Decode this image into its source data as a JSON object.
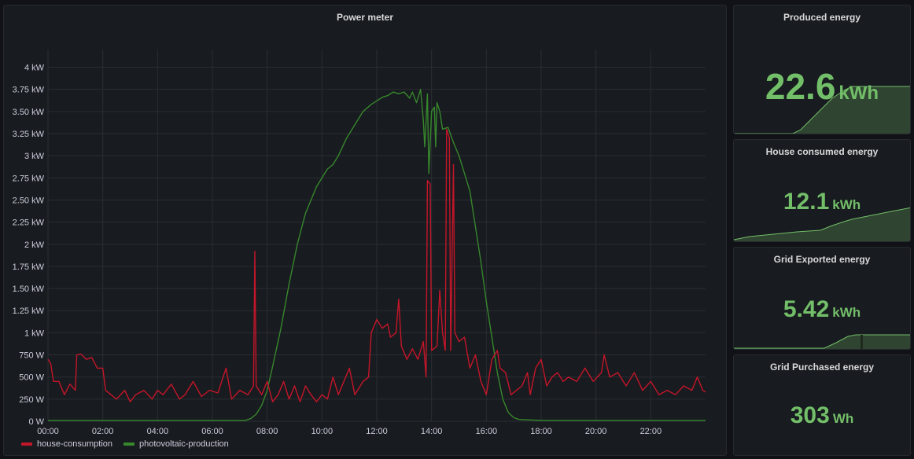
{
  "main_panel": {
    "title": "Power meter",
    "legend": [
      {
        "label": "house-consumption",
        "color": "#c4162a"
      },
      {
        "label": "photovoltaic-production",
        "color": "#37872d"
      }
    ]
  },
  "chart_data": {
    "type": "line",
    "title": "Power meter",
    "xlabel": "",
    "ylabel": "",
    "x_unit": "hour of day",
    "xlim": [
      0,
      24
    ],
    "ylim": [
      0,
      4.2
    ],
    "x_ticks": [
      "00:00",
      "02:00",
      "04:00",
      "06:00",
      "08:00",
      "10:00",
      "12:00",
      "14:00",
      "16:00",
      "18:00",
      "20:00",
      "22:00"
    ],
    "y_ticks": [
      "0 W",
      "250 W",
      "500 W",
      "750 W",
      "1 kW",
      "1.25 kW",
      "1.50 kW",
      "1.75 kW",
      "2 kW",
      "2.25 kW",
      "2.50 kW",
      "2.75 kW",
      "3 kW",
      "3.25 kW",
      "3.50 kW",
      "3.75 kW",
      "4 kW"
    ],
    "grid": true,
    "legend_position": "bottom-left",
    "series": [
      {
        "name": "house-consumption",
        "color": "#c4162a",
        "unit": "kW",
        "points": [
          [
            0,
            0.7
          ],
          [
            0.1,
            0.65
          ],
          [
            0.2,
            0.45
          ],
          [
            0.4,
            0.45
          ],
          [
            0.6,
            0.3
          ],
          [
            0.8,
            0.42
          ],
          [
            1.0,
            0.35
          ],
          [
            1.05,
            0.75
          ],
          [
            1.2,
            0.76
          ],
          [
            1.4,
            0.7
          ],
          [
            1.6,
            0.72
          ],
          [
            1.8,
            0.6
          ],
          [
            2.0,
            0.6
          ],
          [
            2.1,
            0.35
          ],
          [
            2.3,
            0.3
          ],
          [
            2.5,
            0.25
          ],
          [
            2.8,
            0.35
          ],
          [
            3.0,
            0.22
          ],
          [
            3.2,
            0.3
          ],
          [
            3.5,
            0.35
          ],
          [
            3.8,
            0.25
          ],
          [
            4.0,
            0.35
          ],
          [
            4.2,
            0.3
          ],
          [
            4.5,
            0.42
          ],
          [
            4.8,
            0.25
          ],
          [
            5.0,
            0.3
          ],
          [
            5.3,
            0.45
          ],
          [
            5.6,
            0.28
          ],
          [
            5.9,
            0.35
          ],
          [
            6.2,
            0.32
          ],
          [
            6.5,
            0.6
          ],
          [
            6.7,
            0.25
          ],
          [
            7.0,
            0.35
          ],
          [
            7.3,
            0.3
          ],
          [
            7.5,
            0.4
          ],
          [
            7.55,
            1.92
          ],
          [
            7.6,
            0.4
          ],
          [
            7.8,
            0.3
          ],
          [
            8.0,
            0.45
          ],
          [
            8.2,
            0.22
          ],
          [
            8.4,
            0.3
          ],
          [
            8.6,
            0.45
          ],
          [
            8.8,
            0.25
          ],
          [
            9.0,
            0.4
          ],
          [
            9.2,
            0.22
          ],
          [
            9.4,
            0.4
          ],
          [
            9.6,
            0.3
          ],
          [
            9.8,
            0.22
          ],
          [
            10.0,
            0.3
          ],
          [
            10.2,
            0.25
          ],
          [
            10.4,
            0.5
          ],
          [
            10.6,
            0.3
          ],
          [
            10.8,
            0.45
          ],
          [
            11.0,
            0.6
          ],
          [
            11.2,
            0.3
          ],
          [
            11.5,
            0.45
          ],
          [
            11.7,
            0.5
          ],
          [
            11.8,
            1.0
          ],
          [
            12.0,
            1.15
          ],
          [
            12.2,
            1.05
          ],
          [
            12.4,
            1.1
          ],
          [
            12.5,
            0.95
          ],
          [
            12.7,
            1.0
          ],
          [
            12.8,
            1.38
          ],
          [
            12.9,
            0.85
          ],
          [
            13.1,
            0.7
          ],
          [
            13.3,
            0.82
          ],
          [
            13.5,
            0.7
          ],
          [
            13.7,
            0.9
          ],
          [
            13.8,
            0.5
          ],
          [
            13.85,
            2.72
          ],
          [
            13.95,
            2.68
          ],
          [
            14.0,
            0.8
          ],
          [
            14.2,
            0.85
          ],
          [
            14.3,
            1.48
          ],
          [
            14.4,
            1.0
          ],
          [
            14.5,
            0.8
          ],
          [
            14.55,
            3.3
          ],
          [
            14.65,
            3.2
          ],
          [
            14.7,
            0.8
          ],
          [
            14.8,
            2.9
          ],
          [
            14.85,
            1.0
          ],
          [
            15.0,
            0.9
          ],
          [
            15.2,
            0.95
          ],
          [
            15.4,
            0.6
          ],
          [
            15.6,
            0.75
          ],
          [
            15.8,
            0.45
          ],
          [
            16.0,
            0.3
          ],
          [
            16.2,
            0.7
          ],
          [
            16.4,
            0.8
          ],
          [
            16.5,
            0.6
          ],
          [
            16.7,
            0.55
          ],
          [
            16.9,
            0.3
          ],
          [
            17.1,
            0.35
          ],
          [
            17.3,
            0.4
          ],
          [
            17.5,
            0.55
          ],
          [
            17.6,
            0.3
          ],
          [
            17.8,
            0.6
          ],
          [
            18.0,
            0.7
          ],
          [
            18.2,
            0.4
          ],
          [
            18.4,
            0.5
          ],
          [
            18.6,
            0.55
          ],
          [
            18.8,
            0.45
          ],
          [
            19.0,
            0.5
          ],
          [
            19.3,
            0.45
          ],
          [
            19.6,
            0.6
          ],
          [
            19.9,
            0.45
          ],
          [
            20.2,
            0.55
          ],
          [
            20.3,
            0.75
          ],
          [
            20.5,
            0.5
          ],
          [
            20.8,
            0.55
          ],
          [
            21.1,
            0.4
          ],
          [
            21.4,
            0.55
          ],
          [
            21.7,
            0.35
          ],
          [
            22.0,
            0.45
          ],
          [
            22.3,
            0.3
          ],
          [
            22.6,
            0.35
          ],
          [
            22.9,
            0.3
          ],
          [
            23.2,
            0.4
          ],
          [
            23.5,
            0.35
          ],
          [
            23.7,
            0.5
          ],
          [
            23.9,
            0.35
          ],
          [
            24,
            0.33
          ]
        ]
      },
      {
        "name": "photovoltaic-production",
        "color": "#37872d",
        "unit": "kW",
        "points": [
          [
            0,
            0.01
          ],
          [
            7.2,
            0.01
          ],
          [
            7.4,
            0.03
          ],
          [
            7.6,
            0.08
          ],
          [
            7.8,
            0.18
          ],
          [
            8.0,
            0.35
          ],
          [
            8.2,
            0.62
          ],
          [
            8.5,
            1.05
          ],
          [
            8.8,
            1.55
          ],
          [
            9.1,
            2.0
          ],
          [
            9.4,
            2.35
          ],
          [
            9.6,
            2.5
          ],
          [
            9.8,
            2.65
          ],
          [
            10.0,
            2.75
          ],
          [
            10.2,
            2.85
          ],
          [
            10.4,
            2.9
          ],
          [
            10.6,
            3.0
          ],
          [
            10.9,
            3.2
          ],
          [
            11.2,
            3.35
          ],
          [
            11.5,
            3.5
          ],
          [
            11.8,
            3.58
          ],
          [
            12.0,
            3.62
          ],
          [
            12.2,
            3.66
          ],
          [
            12.4,
            3.68
          ],
          [
            12.6,
            3.72
          ],
          [
            12.8,
            3.7
          ],
          [
            13.0,
            3.72
          ],
          [
            13.2,
            3.65
          ],
          [
            13.3,
            3.72
          ],
          [
            13.45,
            3.6
          ],
          [
            13.6,
            3.75
          ],
          [
            13.7,
            3.4
          ],
          [
            13.75,
            3.1
          ],
          [
            13.85,
            3.7
          ],
          [
            13.9,
            2.8
          ],
          [
            14.0,
            3.5
          ],
          [
            14.1,
            3.55
          ],
          [
            14.15,
            3.1
          ],
          [
            14.2,
            3.6
          ],
          [
            14.3,
            3.5
          ],
          [
            14.4,
            3.3
          ],
          [
            14.6,
            3.32
          ],
          [
            14.8,
            3.15
          ],
          [
            15.0,
            3.0
          ],
          [
            15.2,
            2.8
          ],
          [
            15.4,
            2.6
          ],
          [
            15.6,
            2.2
          ],
          [
            15.8,
            1.8
          ],
          [
            16.0,
            1.35
          ],
          [
            16.2,
            0.95
          ],
          [
            16.4,
            0.55
          ],
          [
            16.6,
            0.25
          ],
          [
            16.8,
            0.1
          ],
          [
            17.0,
            0.04
          ],
          [
            17.2,
            0.02
          ],
          [
            18.0,
            0.01
          ],
          [
            24,
            0.01
          ]
        ]
      }
    ]
  },
  "stats": [
    {
      "title": "Produced energy",
      "value": "22.6",
      "unit": "kWh",
      "color": "#73bf69"
    },
    {
      "title": "House consumed energy",
      "value": "12.1",
      "unit": "kWh",
      "color": "#73bf69"
    },
    {
      "title": "Grid Exported energy",
      "value": "5.42",
      "unit": "kWh",
      "color": "#73bf69"
    },
    {
      "title": "Grid Purchased energy",
      "value": "303",
      "unit": "Wh",
      "color": "#73bf69"
    }
  ]
}
